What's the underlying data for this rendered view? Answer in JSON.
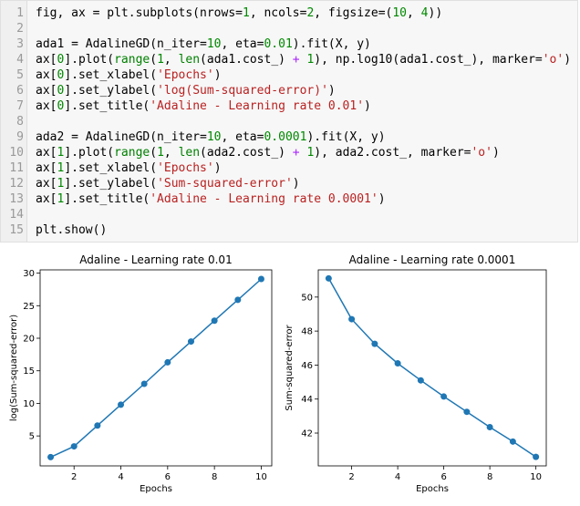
{
  "code_cell": {
    "lines": [
      {
        "n": "1",
        "tokens": [
          [
            "plain",
            "fig, ax = plt.subplots(nrows="
          ],
          [
            "num",
            "1"
          ],
          [
            "plain",
            ", ncols="
          ],
          [
            "num",
            "2"
          ],
          [
            "plain",
            ", figsize=("
          ],
          [
            "num",
            "10"
          ],
          [
            "plain",
            ", "
          ],
          [
            "num",
            "4"
          ],
          [
            "plain",
            "))"
          ]
        ]
      },
      {
        "n": "2",
        "tokens": []
      },
      {
        "n": "3",
        "tokens": [
          [
            "plain",
            "ada1 = AdalineGD(n_iter="
          ],
          [
            "num",
            "10"
          ],
          [
            "plain",
            ", eta="
          ],
          [
            "num",
            "0.01"
          ],
          [
            "plain",
            ").fit(X, y)"
          ]
        ]
      },
      {
        "n": "4",
        "tokens": [
          [
            "plain",
            "ax["
          ],
          [
            "num",
            "0"
          ],
          [
            "plain",
            "].plot("
          ],
          [
            "kw",
            "range"
          ],
          [
            "plain",
            "("
          ],
          [
            "num",
            "1"
          ],
          [
            "plain",
            ", "
          ],
          [
            "kw",
            "len"
          ],
          [
            "plain",
            "(ada1.cost_) "
          ],
          [
            "op",
            "+"
          ],
          [
            "plain",
            " "
          ],
          [
            "num",
            "1"
          ],
          [
            "plain",
            "), np.log10(ada1.cost_), marker="
          ],
          [
            "str",
            "'o'"
          ],
          [
            "plain",
            ")"
          ]
        ]
      },
      {
        "n": "5",
        "tokens": [
          [
            "plain",
            "ax["
          ],
          [
            "num",
            "0"
          ],
          [
            "plain",
            "].set_xlabel("
          ],
          [
            "str",
            "'Epochs'"
          ],
          [
            "plain",
            ")"
          ]
        ]
      },
      {
        "n": "6",
        "tokens": [
          [
            "plain",
            "ax["
          ],
          [
            "num",
            "0"
          ],
          [
            "plain",
            "].set_ylabel("
          ],
          [
            "str",
            "'log(Sum-squared-error)'"
          ],
          [
            "plain",
            ")"
          ]
        ]
      },
      {
        "n": "7",
        "tokens": [
          [
            "plain",
            "ax["
          ],
          [
            "num",
            "0"
          ],
          [
            "plain",
            "].set_title("
          ],
          [
            "str",
            "'Adaline - Learning rate 0.01'"
          ],
          [
            "plain",
            ")"
          ]
        ]
      },
      {
        "n": "8",
        "tokens": []
      },
      {
        "n": "9",
        "tokens": [
          [
            "plain",
            "ada2 = AdalineGD(n_iter="
          ],
          [
            "num",
            "10"
          ],
          [
            "plain",
            ", eta="
          ],
          [
            "num",
            "0.0001"
          ],
          [
            "plain",
            ").fit(X, y)"
          ]
        ]
      },
      {
        "n": "10",
        "tokens": [
          [
            "plain",
            "ax["
          ],
          [
            "num",
            "1"
          ],
          [
            "plain",
            "].plot("
          ],
          [
            "kw",
            "range"
          ],
          [
            "plain",
            "("
          ],
          [
            "num",
            "1"
          ],
          [
            "plain",
            ", "
          ],
          [
            "kw",
            "len"
          ],
          [
            "plain",
            "(ada2.cost_) "
          ],
          [
            "op",
            "+"
          ],
          [
            "plain",
            " "
          ],
          [
            "num",
            "1"
          ],
          [
            "plain",
            "), ada2.cost_, marker="
          ],
          [
            "str",
            "'o'"
          ],
          [
            "plain",
            ")"
          ]
        ]
      },
      {
        "n": "11",
        "tokens": [
          [
            "plain",
            "ax["
          ],
          [
            "num",
            "1"
          ],
          [
            "plain",
            "].set_xlabel("
          ],
          [
            "str",
            "'Epochs'"
          ],
          [
            "plain",
            ")"
          ]
        ]
      },
      {
        "n": "12",
        "tokens": [
          [
            "plain",
            "ax["
          ],
          [
            "num",
            "1"
          ],
          [
            "plain",
            "].set_ylabel("
          ],
          [
            "str",
            "'Sum-squared-error'"
          ],
          [
            "plain",
            ")"
          ]
        ]
      },
      {
        "n": "13",
        "tokens": [
          [
            "plain",
            "ax["
          ],
          [
            "num",
            "1"
          ],
          [
            "plain",
            "].set_title("
          ],
          [
            "str",
            "'Adaline - Learning rate 0.0001'"
          ],
          [
            "plain",
            ")"
          ]
        ]
      },
      {
        "n": "14",
        "tokens": []
      },
      {
        "n": "15",
        "tokens": [
          [
            "plain",
            "plt.show()"
          ]
        ]
      }
    ]
  },
  "colors": {
    "line": "#1f77b4",
    "keyword": "#008000",
    "number": "#008800",
    "string": "#ba2121",
    "operator": "#aa22ff"
  },
  "chart_data": [
    {
      "type": "line",
      "title": "Adaline - Learning rate 0.01",
      "xlabel": "Epochs",
      "ylabel": "log(Sum-squared-error)",
      "x": [
        1,
        2,
        3,
        4,
        5,
        6,
        7,
        8,
        9,
        10
      ],
      "values": [
        1.75,
        3.4,
        6.6,
        9.8,
        13.0,
        16.3,
        19.5,
        22.7,
        25.9,
        29.1
      ],
      "xlim": [
        0.55,
        10.45
      ],
      "ylim": [
        0.4,
        30.5
      ],
      "xticks": [
        2,
        4,
        6,
        8,
        10
      ],
      "yticks": [
        5,
        10,
        15,
        20,
        25,
        30
      ],
      "marker": "o",
      "grid": false
    },
    {
      "type": "line",
      "title": "Adaline - Learning rate 0.0001",
      "xlabel": "Epochs",
      "ylabel": "Sum-squared-error",
      "x": [
        1,
        2,
        3,
        4,
        5,
        6,
        7,
        8,
        9,
        10
      ],
      "values": [
        51.1,
        48.7,
        47.25,
        46.1,
        45.1,
        44.15,
        43.25,
        42.35,
        41.5,
        40.6
      ],
      "xlim": [
        0.55,
        10.45
      ],
      "ylim": [
        40.07,
        51.6
      ],
      "xticks": [
        2,
        4,
        6,
        8,
        10
      ],
      "yticks": [
        42,
        44,
        46,
        48,
        50
      ],
      "marker": "o",
      "grid": false
    }
  ]
}
